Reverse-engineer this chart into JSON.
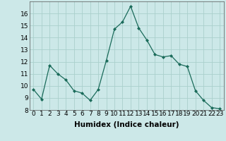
{
  "x": [
    0,
    1,
    2,
    3,
    4,
    5,
    6,
    7,
    8,
    9,
    10,
    11,
    12,
    13,
    14,
    15,
    16,
    17,
    18,
    19,
    20,
    21,
    22,
    23
  ],
  "y": [
    9.7,
    8.9,
    11.7,
    11.0,
    10.5,
    9.6,
    9.4,
    8.8,
    9.7,
    12.1,
    14.7,
    15.3,
    16.6,
    14.8,
    13.8,
    12.6,
    12.4,
    12.5,
    11.8,
    11.6,
    9.6,
    8.8,
    8.2,
    8.1
  ],
  "xlabel": "Humidex (Indice chaleur)",
  "ylim": [
    8,
    17
  ],
  "xlim": [
    -0.5,
    23.5
  ],
  "yticks": [
    8,
    9,
    10,
    11,
    12,
    13,
    14,
    15,
    16
  ],
  "xticks": [
    0,
    1,
    2,
    3,
    4,
    5,
    6,
    7,
    8,
    9,
    10,
    11,
    12,
    13,
    14,
    15,
    16,
    17,
    18,
    19,
    20,
    21,
    22,
    23
  ],
  "line_color": "#1a6b5a",
  "marker": "D",
  "marker_size": 2.0,
  "bg_color": "#cce8e8",
  "grid_color": "#aad0cc",
  "tick_label_fontsize": 6.5,
  "xlabel_fontsize": 7.5
}
